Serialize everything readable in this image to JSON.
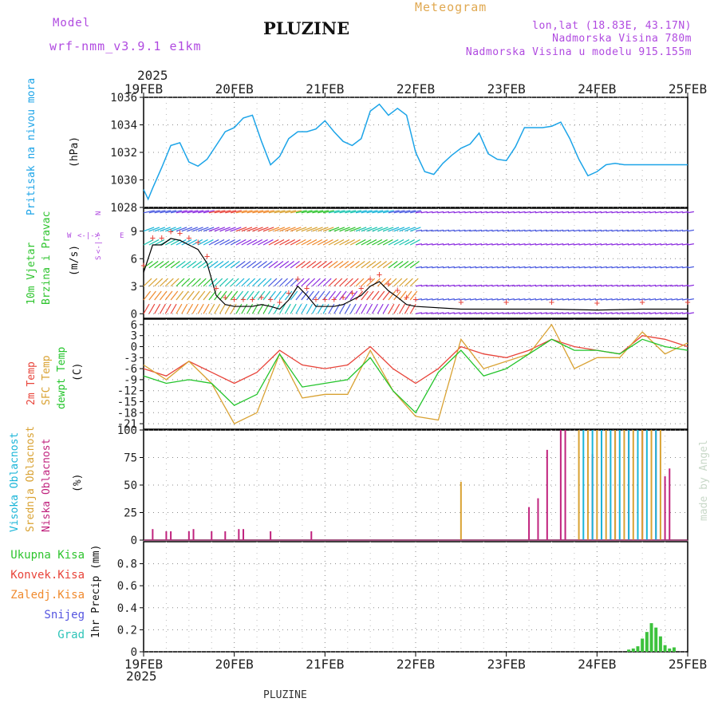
{
  "header": {
    "model_label": "Model",
    "model_name": "wrf-nmm_v3.9.1 e1km",
    "title": "PLUZINE",
    "meteogram_label": "Meteogram",
    "lonlat": "lon,lat (18.83E, 43.17N)",
    "elevation": "Nadmorska Visina 780m",
    "model_elevation": "Nadmorska Visina u modelu 915.155m"
  },
  "time_axis": {
    "year": "2025",
    "ticks": [
      "19FEB",
      "20FEB",
      "21FEB",
      "22FEB",
      "23FEB",
      "24FEB",
      "25FEB"
    ]
  },
  "footer": {
    "station": "PLUZINE"
  },
  "watermark": "made by Angel",
  "colors": {
    "pressure": "#1ca4e8",
    "temp2m": "#e8443a",
    "sfc_temp": "#d9a233",
    "dewpt": "#22c42a",
    "cloud_high": "#1ab5d8",
    "cloud_mid": "#d9a233",
    "cloud_low": "#c0227d",
    "precip_total": "#3dc23d",
    "wind_axis": "#8d2ee0"
  },
  "panels": {
    "pressure": {
      "label": "Pritisak na nivou mora",
      "unit": "(hPa)"
    },
    "wind": {
      "label1": "10m Vjetar",
      "label2": "Brzina i Pravac",
      "unit": "(m/s)",
      "compass_n": "N",
      "compass_w": "W",
      "compass_e": "E",
      "compass_s": "S",
      "compass_mid": "<-|->"
    },
    "temp": {
      "label_2m": "2m Temp",
      "label_sfc": "SFC Temp",
      "label_dewpt": "dewpt Temp",
      "unit": "(C)"
    },
    "cloud": {
      "label_high": "Visoka Oblacnost",
      "label_mid": "Srednja Oblacnost",
      "label_low": "Niska Oblacnost",
      "unit": "(%)"
    },
    "precip": {
      "legend": [
        "Ukupna Kisa",
        "Konvek.Kisa",
        "Zaledj.Kisa",
        "Snijeg",
        "Grad"
      ],
      "legend_colors": [
        "#2ec42e",
        "#e8443a",
        "#f08a2e",
        "#5555e0",
        "#2ec4b8"
      ],
      "unit": "1hr Precip (mm)"
    }
  },
  "chart_data": [
    {
      "type": "line",
      "name": "pressure",
      "ylabel": "Pritisak na nivou mora (hPa)",
      "ylim": [
        1028,
        1036
      ],
      "yticks": [
        1028,
        1030,
        1032,
        1034,
        1036
      ],
      "grid": true,
      "x": [
        0,
        0.05,
        0.1,
        0.2,
        0.3,
        0.4,
        0.5,
        0.6,
        0.7,
        0.8,
        0.9,
        1.0,
        1.1,
        1.2,
        1.3,
        1.4,
        1.5,
        1.6,
        1.7,
        1.8,
        1.9,
        2.0,
        2.1,
        2.2,
        2.3,
        2.4,
        2.5,
        2.6,
        2.7,
        2.8,
        2.9,
        3.0,
        3.1,
        3.2,
        3.3,
        3.4,
        3.5,
        3.6,
        3.7,
        3.8,
        3.9,
        4.0,
        4.1,
        4.2,
        4.3,
        4.4,
        4.5,
        4.6,
        4.7,
        4.8,
        4.9,
        5.0,
        5.1,
        5.2,
        5.3,
        5.4,
        5.5,
        5.6,
        5.7,
        5.8,
        5.9,
        6.0
      ],
      "series": [
        {
          "values": [
            1029.3,
            1028.6,
            1029.4,
            1030.9,
            1032.5,
            1032.7,
            1031.3,
            1031.0,
            1031.5,
            1032.5,
            1033.5,
            1033.8,
            1034.5,
            1034.7,
            1032.8,
            1031.1,
            1031.7,
            1033.0,
            1033.5,
            1033.5,
            1033.7,
            1034.3,
            1033.5,
            1032.8,
            1032.5,
            1033.0,
            1035.0,
            1035.5,
            1034.7,
            1035.2,
            1034.7,
            1032.0,
            1030.6,
            1030.4,
            1031.2,
            1031.8,
            1032.3,
            1032.6,
            1033.4,
            1031.9,
            1031.5,
            1031.4,
            1032.4,
            1033.8,
            1033.8,
            1033.8,
            1033.9,
            1034.2,
            1033.0,
            1031.5,
            1030.3,
            1030.6,
            1031.1,
            1031.2,
            1031.1,
            1031.1,
            1031.1,
            1031.1,
            1031.1,
            1031.1,
            1031.1,
            1031.1
          ]
        }
      ]
    },
    {
      "type": "line",
      "name": "wind",
      "ylabel": "10m Vjetar Brzina i Pravac (m/s)",
      "ylim": [
        -0.5,
        11.5
      ],
      "yticks": [
        0,
        3,
        6,
        9
      ],
      "grid": true,
      "x": [
        0,
        0.1,
        0.2,
        0.3,
        0.4,
        0.5,
        0.6,
        0.7,
        0.8,
        0.9,
        1.0,
        1.1,
        1.2,
        1.3,
        1.4,
        1.5,
        1.6,
        1.7,
        1.8,
        1.9,
        2.0,
        2.1,
        2.2,
        2.3,
        2.4,
        2.5,
        2.6,
        2.7,
        2.8,
        2.9,
        3.0,
        3.5,
        4.0,
        4.5,
        5.0,
        5.5,
        6.0
      ],
      "series": [
        {
          "name": "speed",
          "values": [
            4.5,
            7.5,
            7.5,
            8.2,
            8.0,
            7.5,
            7.0,
            5.5,
            2.0,
            1.0,
            0.8,
            0.8,
            0.8,
            1.0,
            0.8,
            0.5,
            1.5,
            3.0,
            2.0,
            0.8,
            0.8,
            0.8,
            1.0,
            1.5,
            2.0,
            3.0,
            3.5,
            2.5,
            1.8,
            1.0,
            0.8,
            0.5,
            0.5,
            0.5,
            0.4,
            0.5,
            0.5
          ]
        }
      ],
      "arrow_levels": [
        0,
        1.5,
        3,
        5,
        7.5,
        9,
        11
      ]
    },
    {
      "type": "line",
      "name": "temperature",
      "ylabel": "(C)",
      "ylim": [
        -22.5,
        7.5
      ],
      "yticks": [
        6,
        3,
        0,
        -3,
        -6,
        -9,
        -12,
        -15,
        -18,
        -21
      ],
      "grid": true,
      "x": [
        0,
        0.25,
        0.5,
        0.75,
        1.0,
        1.25,
        1.5,
        1.75,
        2.0,
        2.25,
        2.5,
        2.75,
        3.0,
        3.25,
        3.5,
        3.75,
        4.0,
        4.25,
        4.5,
        4.75,
        5.0,
        5.25,
        5.5,
        5.75,
        6.0
      ],
      "series": [
        {
          "name": "2m Temp",
          "values": [
            -6,
            -8,
            -4,
            -7,
            -10,
            -7,
            -1,
            -5,
            -6,
            -5,
            0,
            -6,
            -10,
            -6,
            0,
            -2,
            -3,
            -1,
            2,
            0,
            -1,
            -2,
            3,
            2,
            0
          ]
        },
        {
          "name": "SFC Temp",
          "values": [
            -5,
            -9,
            -4,
            -10,
            -21,
            -18,
            -2,
            -14,
            -13,
            -13,
            -1,
            -12,
            -19,
            -20,
            2,
            -6,
            -4,
            -2,
            6,
            -6,
            -3,
            -3,
            4,
            -2,
            1
          ]
        },
        {
          "name": "dewpt Temp",
          "values": [
            -8,
            -10,
            -9,
            -10,
            -16,
            -13,
            -2,
            -11,
            -10,
            -9,
            -3,
            -12,
            -18,
            -7,
            -1,
            -8,
            -6,
            -2,
            2,
            -1,
            -1,
            -2,
            2,
            0,
            -1
          ]
        }
      ]
    },
    {
      "type": "bar",
      "name": "cloud",
      "ylabel": "(%)",
      "ylim": [
        0,
        100
      ],
      "yticks": [
        0,
        25,
        50,
        75,
        100
      ],
      "grid": true,
      "series": [
        {
          "name": "Niska Oblacnost",
          "x": [
            0.1,
            0.25,
            0.3,
            0.5,
            0.55,
            0.75,
            0.9,
            1.05,
            1.1,
            1.4,
            1.85,
            4.25,
            4.35,
            4.45,
            4.6,
            4.65,
            4.95,
            5.05,
            5.2,
            5.35,
            5.5,
            5.65,
            5.75,
            5.8
          ],
          "values": [
            10,
            8,
            8,
            8,
            10,
            8,
            8,
            10,
            10,
            8,
            8,
            30,
            38,
            82,
            100,
            100,
            78,
            100,
            100,
            100,
            100,
            100,
            58,
            65
          ]
        },
        {
          "name": "Srednja Oblacnost",
          "x": [
            3.5,
            4.8,
            4.9,
            5.0,
            5.1,
            5.2,
            5.3,
            5.4,
            5.5,
            5.6,
            5.7
          ],
          "values": [
            53,
            100,
            100,
            100,
            100,
            100,
            100,
            100,
            100,
            100,
            100
          ]
        },
        {
          "name": "Visoka Oblacnost",
          "x": [
            4.85,
            4.95,
            5.05,
            5.15,
            5.25,
            5.35,
            5.45,
            5.55,
            5.65
          ],
          "values": [
            100,
            100,
            100,
            100,
            100,
            100,
            100,
            100,
            100
          ]
        }
      ]
    },
    {
      "type": "bar",
      "name": "precip",
      "ylabel": "1hr Precip (mm)",
      "ylim": [
        0,
        1.0
      ],
      "yticks": [
        0,
        0.2,
        0.4,
        0.6,
        0.8
      ],
      "grid": true,
      "series": [
        {
          "name": "Ukupna Kisa",
          "x": [
            5.35,
            5.4,
            5.45,
            5.5,
            5.55,
            5.6,
            5.65,
            5.7,
            5.75,
            5.8,
            5.85
          ],
          "values": [
            0.02,
            0.03,
            0.05,
            0.12,
            0.18,
            0.26,
            0.22,
            0.14,
            0.06,
            0.03,
            0.04
          ]
        }
      ]
    }
  ]
}
